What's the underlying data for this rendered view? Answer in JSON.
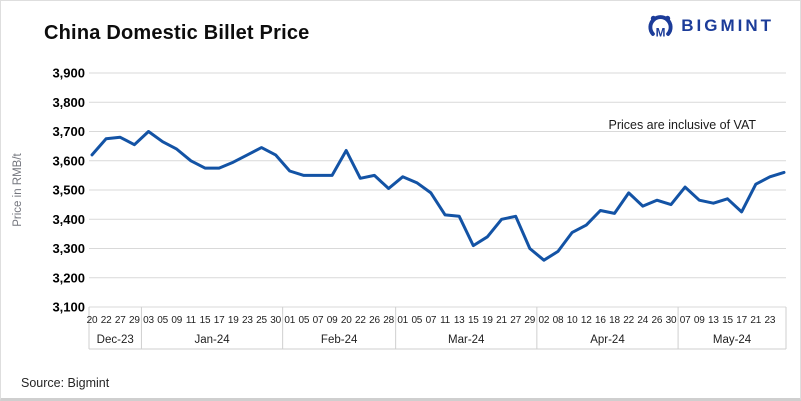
{
  "header": {
    "title": "China Domestic Billet Price",
    "logo_text": "BIGMINT"
  },
  "annotation_text": "Prices are inclusive of VAT",
  "source_text": "Source: Bigmint",
  "colors": {
    "line": "#1353a5",
    "logo_blue": "#1c3c99",
    "grid": "#d9d9d9",
    "axis_table": "#cfcfcf"
  },
  "chart_data": {
    "type": "line",
    "title": "China Domestic Billet Price",
    "xlabel": "",
    "ylabel": "Price in RMB/t",
    "ylim": [
      3100,
      3900
    ],
    "y_step": 100,
    "grid": true,
    "legend_position": "none",
    "annotation": "Prices are inclusive of VAT",
    "unit": "RMB/t",
    "months": [
      {
        "label": "Dec-23",
        "days": [
          "20",
          "22",
          "27",
          "29"
        ]
      },
      {
        "label": "Jan-24",
        "days": [
          "03",
          "05",
          "09",
          "11",
          "15",
          "17",
          "19",
          "23",
          "25",
          "30"
        ]
      },
      {
        "label": "Feb-24",
        "days": [
          "01",
          "05",
          "07",
          "09",
          "20",
          "22",
          "26",
          "28"
        ]
      },
      {
        "label": "Mar-24",
        "days": [
          "01",
          "05",
          "07",
          "11",
          "13",
          "15",
          "19",
          "21",
          "27",
          "29"
        ]
      },
      {
        "label": "Apr-24",
        "days": [
          "02",
          "08",
          "10",
          "12",
          "16",
          "18",
          "22",
          "24",
          "26",
          "30"
        ]
      },
      {
        "label": "May-24",
        "days": [
          "07",
          "09",
          "13",
          "15",
          "17",
          "21",
          "23"
        ]
      }
    ],
    "series": [
      {
        "name": "China Domestic Billet Price (RMB/t, incl. VAT)",
        "values": [
          3620,
          3675,
          3680,
          3655,
          3700,
          3665,
          3640,
          3600,
          3575,
          3575,
          3595,
          3620,
          3645,
          3620,
          3565,
          3550,
          3550,
          3550,
          3635,
          3540,
          3550,
          3505,
          3545,
          3525,
          3490,
          3415,
          3410,
          3310,
          3340,
          3400,
          3410,
          3300,
          3260,
          3290,
          3355,
          3380,
          3430,
          3420,
          3490,
          3445,
          3465,
          3450,
          3510,
          3465,
          3455,
          3470,
          3425,
          3520,
          3545
        ],
        "trailing_value": 3560
      }
    ]
  }
}
